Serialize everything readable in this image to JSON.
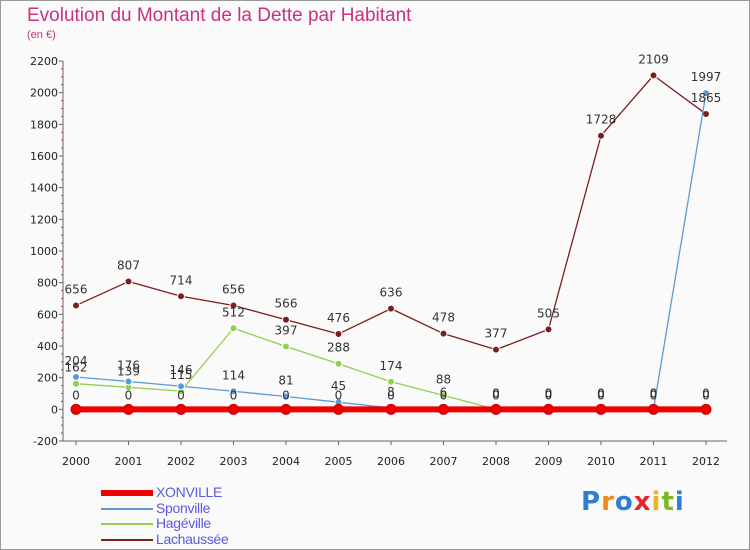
{
  "page": {
    "title": "Evolution du Montant de la Dette par Habitant",
    "subtitle": "(en €)",
    "logo": [
      "P",
      "r",
      "o",
      "x",
      "i",
      "t",
      "i"
    ],
    "logo_colors": [
      "#2f7fd0",
      "#f08a1c",
      "#2f7fd0",
      "#e8252d",
      "#f0b21c",
      "#7ab829",
      "#2f7fd0"
    ]
  },
  "chart_data": {
    "type": "line",
    "title": "Evolution du Montant de la Dette par Habitant",
    "subtitle": "(en €)",
    "xlabel": "",
    "ylabel": "",
    "ylim": [
      -200,
      2200
    ],
    "yticks": [
      -200,
      0,
      200,
      400,
      600,
      800,
      1000,
      1200,
      1400,
      1600,
      1800,
      2000,
      2200
    ],
    "x": [
      "2000",
      "2001",
      "2002",
      "2003",
      "2004",
      "2005",
      "2006",
      "2007",
      "2008",
      "2009",
      "2010",
      "2011",
      "2012"
    ],
    "grid": false,
    "legend": "bottom-left",
    "series": [
      {
        "name": "XONVILLE",
        "color": "#ee0000",
        "values": [
          0,
          0,
          0,
          0,
          0,
          0,
          0,
          0,
          0,
          0,
          0,
          0,
          0
        ],
        "labels": [
          "0",
          "0",
          "0",
          "0",
          "0",
          "0",
          "0",
          "0",
          "0",
          "0",
          "0",
          "0",
          "0"
        ]
      },
      {
        "name": "Sponville",
        "color": "#5b9bd5",
        "values": [
          204,
          176,
          146,
          114,
          81,
          45,
          8,
          6,
          0,
          0,
          0,
          0,
          1997
        ],
        "labels": [
          "204",
          "176",
          "146",
          "114",
          "81",
          "45",
          "8",
          "6",
          "0",
          "0",
          "0",
          "0",
          "1997"
        ]
      },
      {
        "name": "Hagéville",
        "color": "#8fd14f",
        "values": [
          162,
          139,
          115,
          512,
          397,
          288,
          174,
          88,
          0,
          0,
          0,
          0,
          0
        ],
        "labels": [
          "162",
          "139",
          "115",
          "512",
          "397",
          "288",
          "174",
          "88",
          "0",
          "0",
          "0",
          "0",
          "0"
        ]
      },
      {
        "name": "Lachaussée",
        "color": "#7a1e1e",
        "values": [
          656,
          807,
          714,
          656,
          566,
          476,
          636,
          478,
          377,
          505,
          1728,
          2109,
          1865
        ],
        "labels": [
          "656",
          "807",
          "714",
          "656",
          "566",
          "476",
          "636",
          "478",
          "377",
          "505",
          "1728",
          "2109",
          "1865"
        ]
      }
    ]
  }
}
